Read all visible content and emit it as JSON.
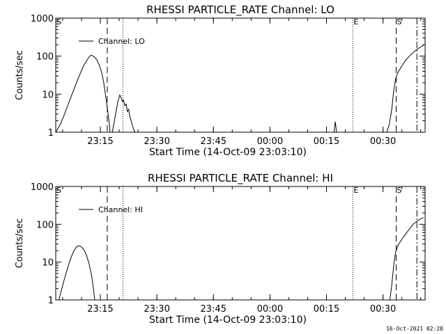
{
  "footer_timestamp": "16-Oct-2021 02:28",
  "chart_data": [
    {
      "type": "line",
      "title": "RHESSI PARTICLE_RATE Channel: LO",
      "xlabel": "Start Time (14-Oct-09 23:03:10)",
      "ylabel": "Counts/sec",
      "yscale": "log",
      "ylim": [
        1,
        1000
      ],
      "xlim": [
        "23:03:10",
        "00:41:10"
      ],
      "x_ticks": [
        "23:15",
        "23:30",
        "23:45",
        "00:00",
        "00:15",
        "00:30"
      ],
      "y_ticks": [
        "1",
        "10",
        "100",
        "1000"
      ],
      "legend": "Channel: LO",
      "legend_position": "top-left",
      "grid": false,
      "markers": [
        {
          "label": "S",
          "time": "23:03:10",
          "style": "dashed"
        },
        {
          "label": "",
          "time": "23:16:50",
          "style": "dashed"
        },
        {
          "label": "",
          "time": "23:21:00",
          "style": "dotted"
        },
        {
          "label": "E",
          "time": "00:22:00",
          "style": "dotted"
        },
        {
          "label": "S",
          "time": "00:33:30",
          "style": "dashed"
        },
        {
          "label": "",
          "time": "00:39:00",
          "style": "dashdot"
        }
      ],
      "series": [
        {
          "name": "Channel: LO",
          "segments": [
            [
              [
                "23:03:10",
                1
              ],
              [
                "23:04:30",
                1.7
              ],
              [
                "23:05:30",
                3
              ],
              [
                "23:06:30",
                5.5
              ],
              [
                "23:07:30",
                10
              ],
              [
                "23:08:30",
                18
              ],
              [
                "23:09:30",
                32
              ],
              [
                "23:10:30",
                55
              ],
              [
                "23:11:30",
                80
              ],
              [
                "23:12:10",
                100
              ],
              [
                "23:12:40",
                106
              ],
              [
                "23:13:20",
                96
              ],
              [
                "23:14:00",
                82
              ],
              [
                "23:14:40",
                60
              ],
              [
                "23:15:20",
                38
              ],
              [
                "23:15:50",
                22
              ],
              [
                "23:16:20",
                10
              ],
              [
                "23:16:50",
                4.5
              ],
              [
                "23:17:20",
                1.8
              ],
              [
                "23:17:35",
                1
              ]
            ],
            [
              [
                "23:18:10",
                1
              ],
              [
                "23:18:40",
                1.8
              ],
              [
                "23:19:10",
                3.5
              ],
              [
                "23:19:40",
                6.5
              ],
              [
                "23:20:10",
                9.5
              ],
              [
                "23:20:30",
                8
              ],
              [
                "23:20:50",
                6.5
              ],
              [
                "23:21:10",
                7
              ],
              [
                "23:21:30",
                5
              ],
              [
                "23:21:50",
                5.5
              ],
              [
                "23:22:10",
                3.5
              ],
              [
                "23:22:30",
                4
              ],
              [
                "23:22:50",
                2.5
              ],
              [
                "23:23:10",
                2
              ],
              [
                "23:23:30",
                1.5
              ],
              [
                "23:23:50",
                1.2
              ],
              [
                "23:24:10",
                1
              ]
            ],
            [
              [
                "00:17:00",
                1
              ],
              [
                "00:17:20",
                1.9
              ],
              [
                "00:17:40",
                1
              ]
            ],
            [
              [
                "00:31:00",
                1
              ],
              [
                "00:31:40",
                1.6
              ],
              [
                "00:32:20",
                4
              ],
              [
                "00:32:50",
                12
              ],
              [
                "00:33:20",
                25
              ],
              [
                "00:34:00",
                38
              ],
              [
                "00:35:00",
                55
              ],
              [
                "00:36:00",
                78
              ],
              [
                "00:37:00",
                100
              ],
              [
                "00:38:00",
                125
              ],
              [
                "00:39:00",
                150
              ],
              [
                "00:40:00",
                175
              ],
              [
                "00:40:45",
                190
              ]
            ]
          ]
        }
      ]
    },
    {
      "type": "line",
      "title": "RHESSI PARTICLE_RATE Channel: HI",
      "xlabel": "Start Time (14-Oct-09 23:03:10)",
      "ylabel": "Counts/sec",
      "yscale": "log",
      "ylim": [
        1,
        1000
      ],
      "xlim": [
        "23:03:10",
        "00:41:10"
      ],
      "x_ticks": [
        "23:15",
        "23:30",
        "23:45",
        "00:00",
        "00:15",
        "00:30"
      ],
      "y_ticks": [
        "1",
        "10",
        "100",
        "1000"
      ],
      "legend": "Channel: HI",
      "legend_position": "top-left",
      "grid": false,
      "markers": [
        {
          "label": "S",
          "time": "23:03:10",
          "style": "dashed"
        },
        {
          "label": "",
          "time": "23:16:50",
          "style": "dashed"
        },
        {
          "label": "",
          "time": "23:21:00",
          "style": "dotted"
        },
        {
          "label": "E",
          "time": "00:22:00",
          "style": "dotted"
        },
        {
          "label": "S",
          "time": "00:33:30",
          "style": "dashed"
        },
        {
          "label": "",
          "time": "00:39:00",
          "style": "dashdot"
        }
      ],
      "series": [
        {
          "name": "Channel: HI",
          "segments": [
            [
              [
                "23:04:00",
                1
              ],
              [
                "23:04:40",
                1.8
              ],
              [
                "23:05:20",
                3.2
              ],
              [
                "23:06:00",
                5.5
              ],
              [
                "23:06:40",
                9
              ],
              [
                "23:07:20",
                14
              ],
              [
                "23:08:00",
                20
              ],
              [
                "23:08:40",
                25
              ],
              [
                "23:09:20",
                27
              ],
              [
                "23:10:00",
                25
              ],
              [
                "23:10:40",
                21
              ],
              [
                "23:11:20",
                15
              ],
              [
                "23:12:00",
                9
              ],
              [
                "23:12:40",
                4.5
              ],
              [
                "23:13:10",
                2
              ],
              [
                "23:13:30",
                1
              ]
            ],
            [
              [
                "00:31:50",
                1
              ],
              [
                "00:32:20",
                2.5
              ],
              [
                "00:32:50",
                8
              ],
              [
                "00:33:20",
                18
              ],
              [
                "00:34:00",
                28
              ],
              [
                "00:35:00",
                40
              ],
              [
                "00:36:00",
                55
              ],
              [
                "00:37:00",
                75
              ],
              [
                "00:38:00",
                100
              ],
              [
                "00:39:00",
                120
              ],
              [
                "00:40:00",
                140
              ],
              [
                "00:40:45",
                150
              ]
            ]
          ]
        }
      ]
    }
  ]
}
